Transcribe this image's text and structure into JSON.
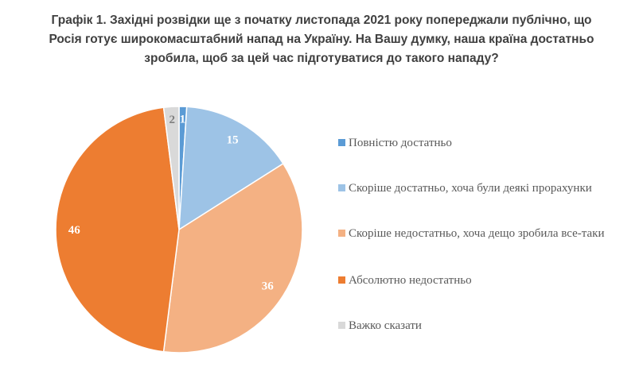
{
  "chart_data": {
    "type": "pie",
    "title_lines": [
      "Графік 1. Західні розвідки ще з початку листопада 2021 року попереджали публічно, що",
      "Росія готує широкомасштабний напад на Україну. На Вашу думку, наша країна достатньо",
      "зробила, щоб за цей час підготуватися до такого нападу?"
    ],
    "categories": [
      "Повністю достатньо",
      "Скоріше достатньо, хоча були деякі прорахунки",
      "Скоріше недостатньо, хоча дещо зробила все-таки",
      "Абсолютно недостатньо",
      "Важко сказати"
    ],
    "values": [
      1,
      15,
      36,
      46,
      2
    ],
    "data_labels": [
      "1",
      "15",
      "36",
      "46",
      "2"
    ],
    "colors": [
      "#5b9bd5",
      "#9dc3e6",
      "#f4b183",
      "#ed7d31",
      "#d9d9d9"
    ],
    "legend_position": "right",
    "start": "top, clockwise"
  }
}
